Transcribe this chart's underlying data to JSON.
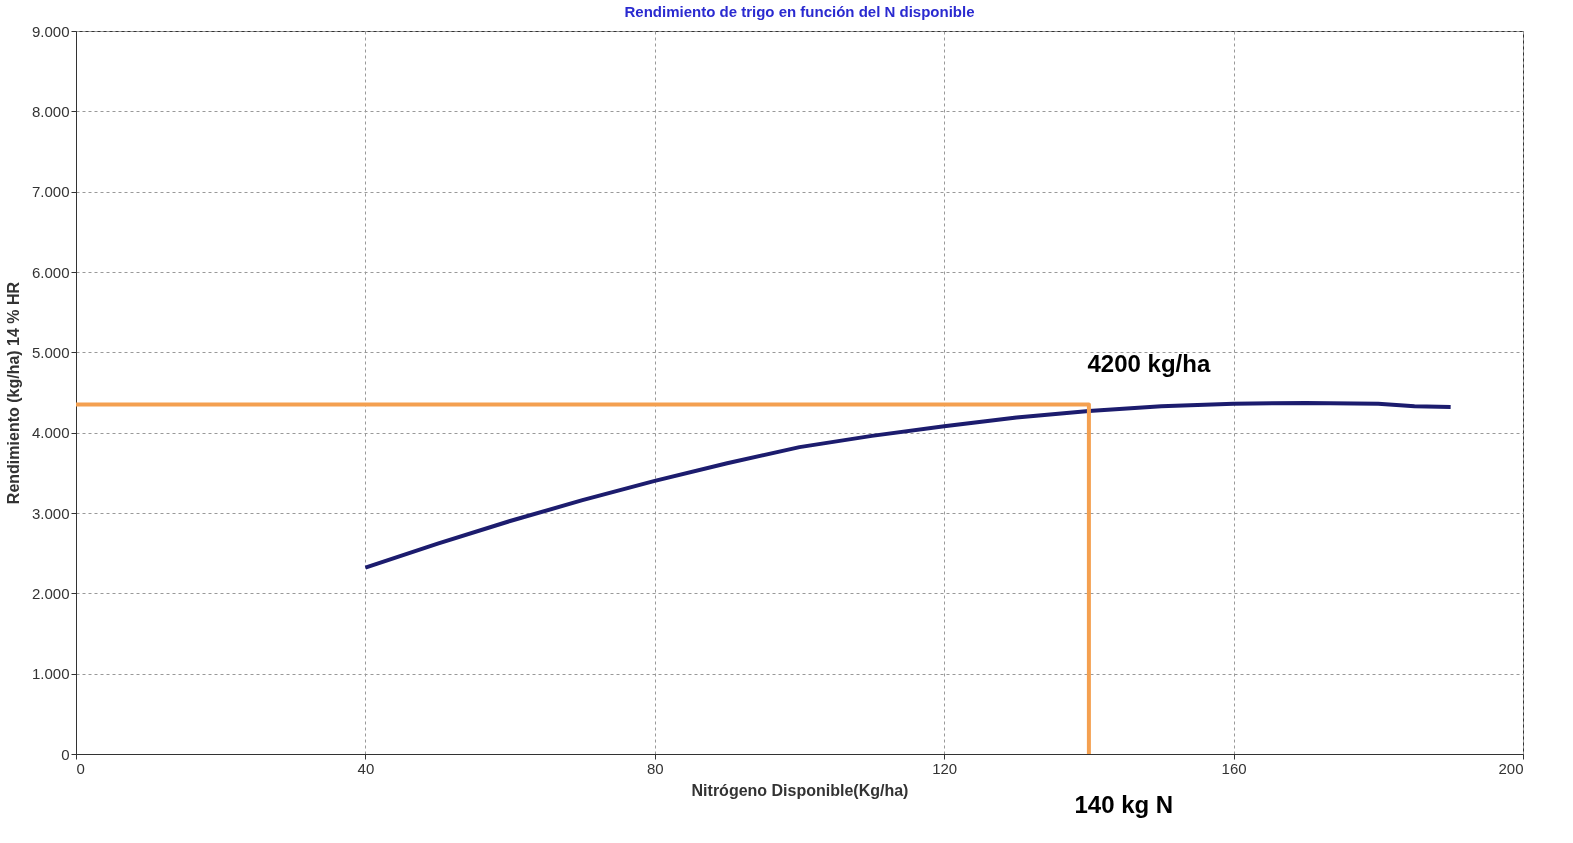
{
  "chart_data": {
    "type": "line",
    "title": "Rendimiento de trigo en función del N disponible",
    "xlabel": "Nitrógeno Disponible(Kg/ha)",
    "ylabel": "Rendimiento (kg/ha) 14 % HR",
    "series": [
      {
        "color": "#1c1c6e",
        "x": [
          40,
          50,
          60,
          70,
          80,
          90,
          100,
          110,
          120,
          130,
          140,
          150,
          160,
          170,
          180,
          185,
          190
        ],
        "values": [
          2320,
          2620,
          2900,
          3160,
          3400,
          3620,
          3820,
          3960,
          4080,
          4190,
          4270,
          4330,
          4360,
          4370,
          4360,
          4330,
          4320
        ]
      },
      {
        "color": "#f4a050",
        "x": [
          0,
          140,
          140
        ],
        "values": [
          4350,
          4350,
          0
        ]
      }
    ],
    "annotations": [
      {
        "text": "4200 kg/ha",
        "x": 140,
        "y": 4350
      },
      "140 kg N"
    ],
    "xlim": [
      0,
      200
    ],
    "xticks": [
      0,
      40,
      80,
      120,
      160,
      200
    ],
    "ylim": [
      0,
      9000
    ],
    "yticks": [
      0,
      {
        "value": 1000,
        "label": "1.000"
      },
      {
        "value": 2000,
        "label": "2.000"
      },
      {
        "value": 3000,
        "label": "3.000"
      },
      {
        "value": 4000,
        "label": "4.000"
      },
      {
        "value": 5000,
        "label": "5.000"
      },
      {
        "value": 6000,
        "label": "6.000"
      },
      {
        "value": 7000,
        "label": "7.000"
      },
      {
        "value": 8000,
        "label": "8.000"
      },
      {
        "value": 9000,
        "label": "9.000"
      }
    ],
    "grid": true,
    "marker": "none",
    "line_style": "solid"
  }
}
